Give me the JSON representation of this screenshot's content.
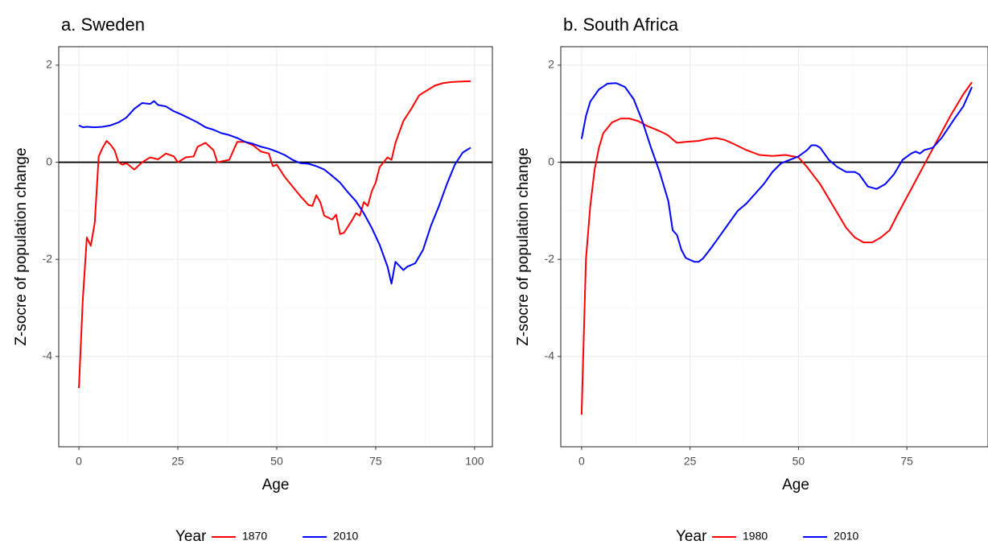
{
  "chart_data": [
    {
      "type": "line",
      "title": "a. Sweden",
      "xlabel": "Age",
      "ylabel": "Z-socre of population change",
      "legend_title": "Year",
      "xlim": [
        -5.1,
        104.5
      ],
      "ylim": [
        -5.86,
        2.38
      ],
      "xticks": [
        0,
        25,
        50,
        75,
        100
      ],
      "yticks": [
        2,
        0,
        -2,
        -4
      ],
      "hline": 0,
      "grid": true,
      "series": [
        {
          "name": "1870",
          "color": "#ff0000",
          "x": [
            0,
            1,
            2,
            3,
            4,
            5,
            6,
            7,
            8,
            9,
            10,
            11,
            12,
            14,
            16,
            18,
            20,
            22,
            24,
            25,
            27,
            29,
            30,
            32,
            34,
            35,
            38,
            40,
            42,
            44,
            46,
            48,
            49,
            50,
            52,
            54,
            56,
            58,
            59,
            60,
            61,
            62,
            64,
            65,
            66,
            67,
            69,
            70,
            71,
            72,
            73,
            74,
            75,
            76,
            78,
            79,
            80,
            82,
            84,
            86,
            88,
            90,
            92,
            94,
            96,
            99
          ],
          "values": [
            -4.65,
            -2.8,
            -1.55,
            -1.72,
            -1.25,
            0.12,
            0.3,
            0.44,
            0.36,
            0.25,
            0.0,
            -0.05,
            -0.02,
            -0.15,
            0.0,
            0.1,
            0.06,
            0.18,
            0.12,
            0.0,
            0.1,
            0.12,
            0.32,
            0.4,
            0.25,
            0.0,
            0.05,
            0.42,
            0.42,
            0.35,
            0.22,
            0.18,
            -0.08,
            -0.05,
            -0.3,
            -0.5,
            -0.7,
            -0.88,
            -0.9,
            -0.68,
            -0.82,
            -1.1,
            -1.18,
            -1.08,
            -1.48,
            -1.45,
            -1.2,
            -1.05,
            -1.1,
            -0.82,
            -0.9,
            -0.6,
            -0.42,
            -0.1,
            0.1,
            0.05,
            0.4,
            0.85,
            1.1,
            1.38,
            1.48,
            1.58,
            1.63,
            1.65,
            1.66,
            1.67
          ]
        },
        {
          "name": "2010",
          "color": "#0000ff",
          "x": [
            0,
            1,
            2,
            4,
            6,
            8,
            10,
            12,
            14,
            16,
            18,
            19,
            20,
            22,
            24,
            26,
            28,
            30,
            32,
            34,
            36,
            38,
            40,
            42,
            44,
            46,
            48,
            50,
            52,
            54,
            56,
            58,
            60,
            62,
            64,
            66,
            68,
            70,
            72,
            74,
            76,
            78,
            79,
            80,
            82,
            83,
            85,
            87,
            89,
            91,
            93,
            95,
            97,
            99
          ],
          "values": [
            0.76,
            0.72,
            0.73,
            0.72,
            0.73,
            0.76,
            0.82,
            0.92,
            1.1,
            1.22,
            1.2,
            1.26,
            1.18,
            1.15,
            1.05,
            0.98,
            0.9,
            0.82,
            0.72,
            0.67,
            0.6,
            0.56,
            0.5,
            0.42,
            0.38,
            0.32,
            0.28,
            0.22,
            0.15,
            0.05,
            -0.02,
            -0.03,
            -0.08,
            -0.15,
            -0.28,
            -0.42,
            -0.62,
            -0.8,
            -1.05,
            -1.35,
            -1.7,
            -2.15,
            -2.5,
            -2.05,
            -2.22,
            -2.15,
            -2.08,
            -1.8,
            -1.3,
            -0.9,
            -0.45,
            -0.05,
            0.2,
            0.3
          ]
        }
      ]
    },
    {
      "type": "line",
      "title": "b. South Africa",
      "xlabel": "Age",
      "ylabel": "Z-socre of population change",
      "legend_title": "Year",
      "xlim": [
        -4.8,
        93.7
      ],
      "ylim": [
        -5.86,
        2.38
      ],
      "xticks": [
        0,
        25,
        50,
        75
      ],
      "yticks": [
        2,
        0,
        -2,
        -4
      ],
      "hline": 0,
      "grid": true,
      "series": [
        {
          "name": "1980",
          "color": "#ff0000",
          "x": [
            0,
            1,
            2,
            3,
            4,
            5,
            7,
            9,
            11,
            13,
            15,
            17,
            19,
            20,
            21,
            22,
            24,
            27,
            29,
            31,
            33,
            35,
            38,
            41,
            44,
            47,
            50,
            52,
            55,
            58,
            61,
            63,
            65,
            67,
            69,
            71,
            73,
            76,
            79,
            82,
            85,
            88,
            90
          ],
          "values": [
            -5.2,
            -2.0,
            -0.9,
            -0.15,
            0.3,
            0.6,
            0.82,
            0.9,
            0.9,
            0.85,
            0.75,
            0.68,
            0.6,
            0.55,
            0.47,
            0.4,
            0.42,
            0.44,
            0.48,
            0.5,
            0.46,
            0.38,
            0.25,
            0.15,
            0.13,
            0.15,
            0.1,
            -0.1,
            -0.45,
            -0.9,
            -1.35,
            -1.55,
            -1.65,
            -1.65,
            -1.55,
            -1.4,
            -1.05,
            -0.55,
            -0.05,
            0.45,
            0.95,
            1.4,
            1.65
          ]
        },
        {
          "name": "2010",
          "color": "#0000ff",
          "x": [
            0,
            1,
            2,
            4,
            6,
            8,
            10,
            12,
            14,
            16,
            18,
            20,
            21,
            22,
            23,
            24,
            26,
            27,
            28,
            30,
            32,
            34,
            36,
            38,
            40,
            42,
            44,
            46,
            48,
            50,
            52,
            53,
            54,
            55,
            57,
            59,
            61,
            63,
            64,
            66,
            68,
            70,
            72,
            74,
            76,
            77,
            78,
            79,
            81,
            83,
            86,
            88,
            90
          ],
          "values": [
            0.48,
            0.95,
            1.25,
            1.5,
            1.62,
            1.63,
            1.55,
            1.3,
            0.85,
            0.3,
            -0.2,
            -0.8,
            -1.4,
            -1.5,
            -1.8,
            -1.97,
            -2.05,
            -2.05,
            -1.98,
            -1.75,
            -1.5,
            -1.25,
            -1.0,
            -0.85,
            -0.65,
            -0.45,
            -0.2,
            -0.02,
            0.05,
            0.12,
            0.25,
            0.35,
            0.35,
            0.3,
            0.05,
            -0.1,
            -0.2,
            -0.2,
            -0.25,
            -0.5,
            -0.55,
            -0.45,
            -0.25,
            0.05,
            0.18,
            0.22,
            0.18,
            0.25,
            0.3,
            0.5,
            0.9,
            1.15,
            1.55
          ]
        }
      ]
    }
  ]
}
